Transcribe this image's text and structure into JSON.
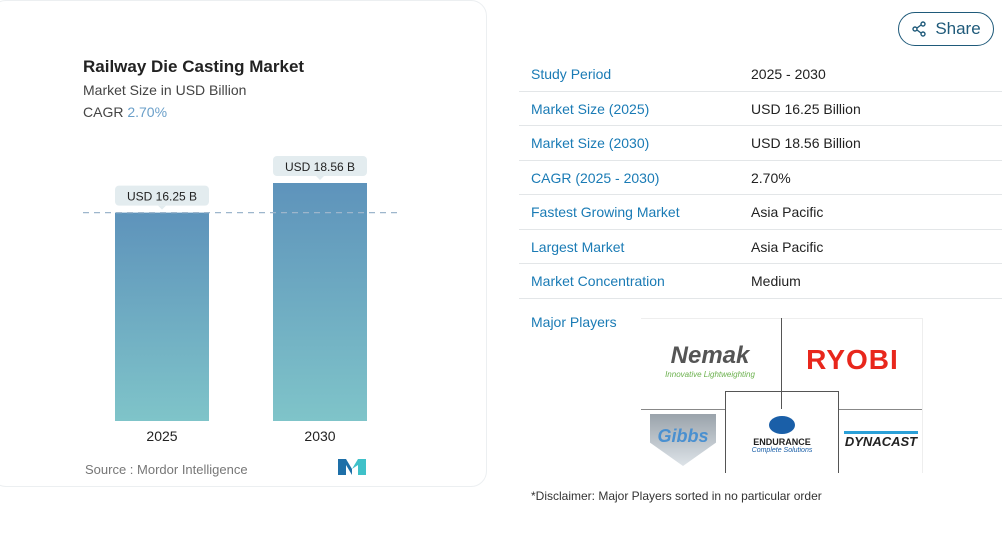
{
  "header": {
    "title": "Railway Die Casting Market",
    "subtitle": "Market Size in USD Billion",
    "cagr_label": "CAGR",
    "cagr_value": "2.70%"
  },
  "chart_data": {
    "type": "bar",
    "categories": [
      "2025",
      "2030"
    ],
    "values": [
      16.25,
      18.56
    ],
    "data_labels": [
      "USD 16.25 B",
      "USD 18.56 B"
    ],
    "title": "Railway Die Casting Market",
    "ylabel": "Market Size in USD Billion",
    "ylim": [
      0,
      18.56
    ],
    "grid": false,
    "reference_line": 16.25
  },
  "source": "Source :  Mordor Intelligence",
  "share_label": "Share",
  "table": [
    {
      "label": "Study Period",
      "value": "2025 - 2030"
    },
    {
      "label": "Market Size (2025)",
      "value": "USD 16.25 Billion"
    },
    {
      "label": "Market Size (2030)",
      "value": "USD 18.56 Billion"
    },
    {
      "label": "CAGR (2025 - 2030)",
      "value": "2.70%"
    },
    {
      "label": "Fastest Growing Market",
      "value": "Asia Pacific"
    },
    {
      "label": "Largest Market",
      "value": "Asia Pacific"
    },
    {
      "label": "Market Concentration",
      "value": "Medium"
    }
  ],
  "major_players_label": "Major Players",
  "players": [
    "Nemak",
    "RYOBI",
    "Gibbs",
    "ENDURANCE",
    "DYNACAST"
  ],
  "player_taglines": {
    "nemak": "Innovative Lightweighting",
    "endurance": "Complete Solutions"
  },
  "disclaimer": "*Disclaimer: Major Players sorted in no particular order",
  "colors": {
    "bar_top": "#5e93bb",
    "bar_bottom": "#7fc4c9",
    "accent": "#1a7bb5"
  }
}
